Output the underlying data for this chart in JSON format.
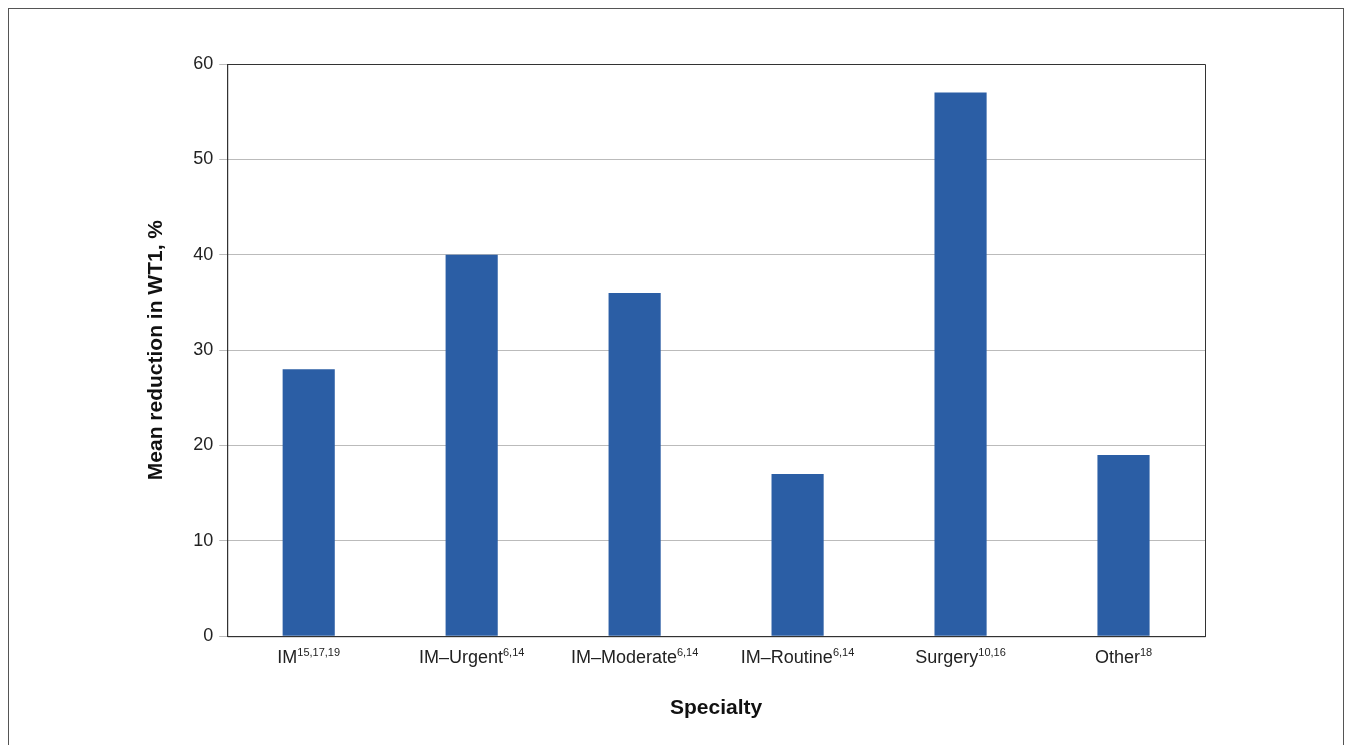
{
  "chart_data": {
    "type": "bar",
    "xlabel": "Specialty",
    "ylabel": "Mean reduction in WT1, %",
    "categories": [
      "IM$^{15,17,19}$",
      "IM–Urgent$^{6,14}$",
      "IM–Moderate$^{6,14}$",
      "IM–Routine$^{6,14}$",
      "Surgery$^{10,16}$",
      "Other$^{18}$"
    ],
    "values": [
      28,
      40,
      36,
      17,
      57,
      19
    ],
    "color": "#2b5ea5",
    "ylim": [
      0,
      60
    ],
    "yticks": [
      0,
      10,
      20,
      30,
      40,
      50,
      60
    ],
    "grid": "y",
    "legend": false
  }
}
